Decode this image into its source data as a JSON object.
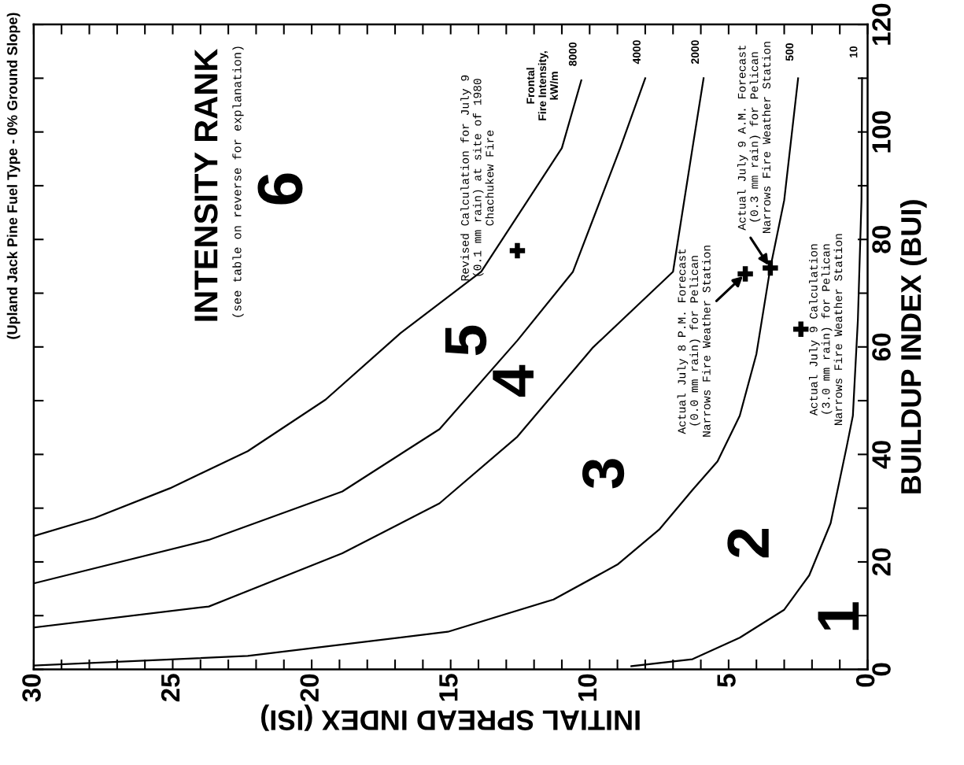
{
  "chart_data": {
    "type": "line",
    "subtitle": "(Upland Jack Pine Fuel Type - 0% Ground Slope)",
    "xlabel": "INITIAL SPREAD INDEX (ISI)",
    "ylabel": "BUILDUP INDEX (BUI)",
    "xlim": [
      30,
      0
    ],
    "ylim": [
      0,
      120
    ],
    "xticks": [
      0,
      {
        "value": 1,
        "label": null
      },
      {
        "value": 2,
        "label": null
      },
      {
        "value": 3,
        "label": null
      },
      {
        "value": 4,
        "label": null
      },
      5,
      {
        "value": 6,
        "label": null
      },
      {
        "value": 7,
        "label": null
      },
      {
        "value": 8,
        "label": null
      },
      {
        "value": 9,
        "label": null
      },
      10,
      {
        "value": 11,
        "label": null
      },
      {
        "value": 12,
        "label": null
      },
      {
        "value": 13,
        "label": null
      },
      {
        "value": 14,
        "label": null
      },
      15,
      {
        "value": 16,
        "label": null
      },
      {
        "value": 17,
        "label": null
      },
      {
        "value": 18,
        "label": null
      },
      {
        "value": 19,
        "label": null
      },
      20,
      {
        "value": 21,
        "label": null
      },
      {
        "value": 22,
        "label": null
      },
      {
        "value": 23,
        "label": null
      },
      {
        "value": 24,
        "label": null
      },
      25,
      {
        "value": 26,
        "label": null
      },
      {
        "value": 27,
        "label": null
      },
      {
        "value": 28,
        "label": null
      },
      {
        "value": 29,
        "label": null
      },
      30
    ],
    "yticks": [
      0,
      {
        "value": 10,
        "label": null
      },
      20,
      {
        "value": 30,
        "label": null
      },
      40,
      {
        "value": 50,
        "label": null
      },
      60,
      {
        "value": 70,
        "label": null
      },
      80,
      {
        "value": 90,
        "label": null
      },
      100,
      {
        "value": 110,
        "label": null
      },
      120
    ],
    "grid": false,
    "legend": "top",
    "series": [
      {
        "name": "8000",
        "color": "#000000",
        "x": [
          30.0,
          27.8,
          25.1,
          22.3,
          19.5,
          16.8,
          13.9,
          11.0,
          10.3
        ],
        "values": [
          24.8,
          28.2,
          33.7,
          40.6,
          50.2,
          62.6,
          74.0,
          97.0,
          109.6
        ]
      },
      {
        "name": "4000",
        "color": "#000000",
        "x": [
          30.0,
          23.7,
          18.9,
          15.4,
          12.6,
          10.6,
          8.9,
          8.0
        ],
        "values": [
          16.0,
          24.1,
          33.1,
          44.7,
          61.2,
          74.0,
          97.0,
          110.0
        ]
      },
      {
        "name": "2000",
        "color": "#000000",
        "x": [
          30.0,
          23.7,
          18.9,
          15.4,
          12.6,
          9.9,
          7.0,
          6.3,
          5.9
        ],
        "values": [
          7.8,
          11.7,
          21.6,
          30.9,
          43.3,
          59.8,
          74.0,
          97.0,
          110.0
        ]
      },
      {
        "name": "500",
        "color": "#000000",
        "x": [
          30.0,
          22.3,
          15.1,
          11.3,
          9.0,
          7.5,
          6.3,
          5.4,
          4.6,
          4.0,
          3.5,
          3.0,
          2.5
        ],
        "values": [
          0.7,
          2.5,
          7.0,
          13.0,
          19.5,
          26.0,
          33.4,
          38.7,
          47.2,
          58.7,
          74.7,
          87.3,
          110.0
        ]
      },
      {
        "name": "10",
        "color": "#000000",
        "x": [
          8.5,
          6.3,
          4.6,
          3.0,
          2.1,
          1.33,
          0.75,
          0.53,
          0.35,
          0.22,
          0.2
        ],
        "values": [
          0.6,
          1.9,
          5.9,
          11.1,
          17.5,
          27.2,
          41.5,
          47.2,
          65.0,
          87.3,
          110.0
        ]
      },
      {
        "type": "scatter",
        "marker": "cross",
        "color": "#000000",
        "x": [
          12.6,
          4.4,
          3.5,
          2.4
        ],
        "values": [
          77.9,
          73.6,
          74.7,
          63.3
        ]
      }
    ],
    "annotations": [
      "INTENSITY RANK",
      "(see table on reverse for explanation)",
      "6",
      "5",
      "4",
      "3",
      "2",
      "1",
      "Revised Calculation for July 9\n(0.1 mm rain) at site of 1980\nChachukew Fire",
      "Frontal\nFire Intensity,\nkW/m",
      {
        "text": "Actual July 8 P.M. Forecast\n(0.0 mm rain) for Pelican\nNarrows Fire Weather Station",
        "x": 4.4,
        "y": 73.6
      },
      {
        "text": "Actual July 9 A.M. Forecast\n(0.3 mm rain) for Pelican\nNarrows Fire Weather Station",
        "x": 3.5,
        "y": 74.7
      },
      "Actual July 9 Calculation\n(3.0 mm rain) for Pelican\nNarrows Fire Weather Station"
    ]
  }
}
